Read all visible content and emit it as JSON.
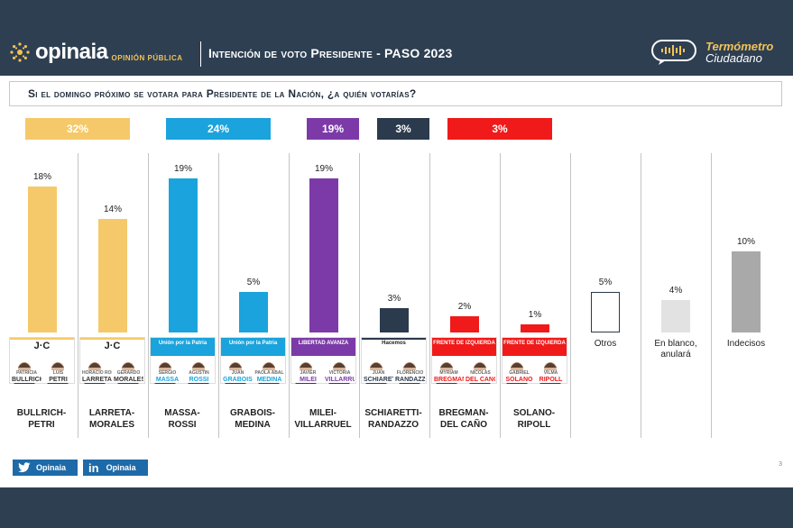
{
  "header": {
    "brand": "opinaia",
    "brand_sub": "OPINIÓN PÚBLICA",
    "title": "Intención de voto Presidente - PASO 2023",
    "thermo_line1": "Termómetro",
    "thermo_line2": "Ciudadano"
  },
  "question": "Si el domingo próximo se votara para Presidente de la Nación, ¿a quién votarías?",
  "chart_data": {
    "type": "bar",
    "title": "",
    "ylim": [
      0,
      20
    ],
    "groups": [
      {
        "label": "32%",
        "color": "#f5c96a",
        "members": [
          "BULLRICH-PETRI",
          "LARRETA-MORALES"
        ]
      },
      {
        "label": "24%",
        "color": "#1aa3dc",
        "members": [
          "MASSA-ROSSI",
          "GRABOIS-MEDINA"
        ]
      },
      {
        "label": "19%",
        "color": "#7c3aa8",
        "members": [
          "MILEI-VILLARRUEL"
        ]
      },
      {
        "label": "3%",
        "color": "#2b3a4c",
        "members": [
          "SCHIARETTI-RANDAZZO"
        ]
      },
      {
        "label": "3%",
        "color": "#f01a1a",
        "members": [
          "BREGMAN-DEL CAÑO",
          "SOLANO-RIPOLL"
        ]
      }
    ],
    "categories": [
      "BULLRICH-PETRI",
      "LARRETA-MORALES",
      "MASSA-ROSSI",
      "GRABOIS-MEDINA",
      "MILEI-VILLARRUEL",
      "SCHIARETTI-RANDAZZO",
      "BREGMAN-DEL CAÑO",
      "SOLANO-RIPOLL",
      "Otros",
      "En blanco, anulará",
      "Indecisos"
    ],
    "values": [
      18,
      14,
      19,
      5,
      19,
      3,
      2,
      1,
      5,
      4,
      10
    ],
    "value_labels": [
      "18%",
      "14%",
      "19%",
      "5%",
      "19%",
      "3%",
      "2%",
      "1%",
      "5%",
      "4%",
      "10%"
    ],
    "colors": [
      "#f5c96a",
      "#f5c96a",
      "#1aa3dc",
      "#1aa3dc",
      "#7c3aa8",
      "#2b3a4c",
      "#f01a1a",
      "#f01a1a",
      "#ffffff",
      "#e2e2e2",
      "#a9a9a9"
    ]
  },
  "candidates": [
    {
      "line1": "BULLRICH-",
      "line2": "PETRI",
      "logo": "J·C",
      "left_top": "PATRICIA",
      "left_name": "BULLRICH",
      "right_top": "LUIS",
      "right_name": "PETRI",
      "band": "#f5c96a"
    },
    {
      "line1": "LARRETA-",
      "line2": "MORALES",
      "logo": "J·C",
      "left_top": "HORACIO RODRÍGUEZ",
      "left_name": "LARRETA",
      "right_top": "GERARDO",
      "right_name": "MORALES",
      "band": "#f5c96a"
    },
    {
      "line1": "MASSA-",
      "line2": "ROSSI",
      "logo": "Unión por la Patria",
      "left_top": "SERGIO",
      "left_name": "MASSA",
      "right_top": "AGUSTÍN",
      "right_name": "ROSSI",
      "band": "#1aa3dc"
    },
    {
      "line1": "GRABOIS-",
      "line2": "MEDINA",
      "logo": "Unión por la Patria",
      "left_top": "JUAN",
      "left_name": "GRABOIS",
      "right_top": "PAOLA ABAL",
      "right_name": "MEDINA",
      "band": "#1aa3dc"
    },
    {
      "line1": "MILEI-",
      "line2": "VILLARRUEL",
      "logo": "LIBERTAD AVANZA",
      "left_top": "JAVIER",
      "left_name": "MILEI",
      "right_top": "VICTORIA",
      "right_name": "VILLARRUEL",
      "band": "#7c3aa8"
    },
    {
      "line1": "SCHIARETTI-",
      "line2": "RANDAZZO",
      "logo": "Hacemos",
      "left_top": "JUAN",
      "left_name": "SCHIARETTI",
      "right_top": "FLORENCIO",
      "right_name": "RANDAZZO",
      "band": "#2b3a4c"
    },
    {
      "line1": "BREGMAN-",
      "line2": "DEL CAÑO",
      "logo": "FRENTE DE IZQUIERDA",
      "left_top": "MYRIAM",
      "left_name": "BREGMAN",
      "right_top": "NICOLÁS",
      "right_name": "DEL CAÑO",
      "band": "#f01a1a"
    },
    {
      "line1": "SOLANO-",
      "line2": "RIPOLL",
      "logo": "FRENTE DE IZQUIERDA",
      "left_top": "GABRIEL",
      "left_name": "SOLANO",
      "right_top": "VILMA",
      "right_name": "RIPOLL",
      "band": "#f01a1a"
    }
  ],
  "others": [
    {
      "line1": "Otros",
      "line2": ""
    },
    {
      "line1": "En blanco,",
      "line2": "anulará"
    },
    {
      "line1": "Indecisos",
      "line2": ""
    }
  ],
  "social": {
    "twitter": "Opinaia",
    "linkedin": "Opinaia",
    "linkedin_icon": "in"
  },
  "page_number": "3"
}
